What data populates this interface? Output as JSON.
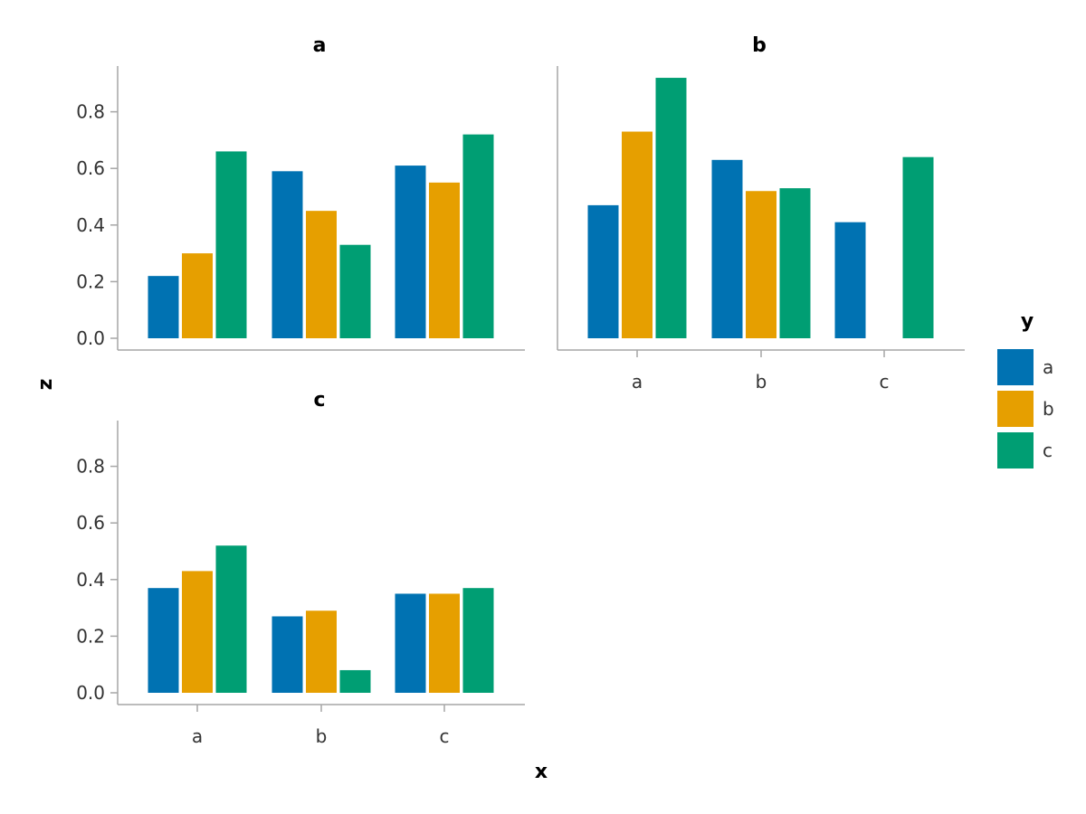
{
  "chart_data": {
    "type": "bar",
    "xlabel": "x",
    "ylabel": "z",
    "ylim": [
      0,
      0.96
    ],
    "yticks": [
      "0.0",
      "0.2",
      "0.4",
      "0.6",
      "0.8"
    ],
    "ytick_values": [
      0.0,
      0.2,
      0.4,
      0.6,
      0.8
    ],
    "categories": [
      "a",
      "b",
      "c"
    ],
    "legend": {
      "title": "y",
      "placement": "right",
      "entries": [
        {
          "label": "a",
          "color": "#0072b2"
        },
        {
          "label": "b",
          "color": "#e69f00"
        },
        {
          "label": "c",
          "color": "#009e73"
        }
      ]
    },
    "facets": [
      {
        "title": "a",
        "series": [
          {
            "group": "a",
            "values": [
              0.22,
              0.59,
              0.61
            ]
          },
          {
            "group": "b",
            "values": [
              0.3,
              0.45,
              0.55
            ]
          },
          {
            "group": "c",
            "values": [
              0.66,
              0.33,
              0.72
            ]
          }
        ]
      },
      {
        "title": "b",
        "series": [
          {
            "group": "a",
            "values": [
              0.47,
              0.63,
              0.41
            ]
          },
          {
            "group": "b",
            "values": [
              0.73,
              0.52,
              0.0
            ]
          },
          {
            "group": "c",
            "values": [
              0.92,
              0.53,
              0.64
            ]
          }
        ]
      },
      {
        "title": "c",
        "series": [
          {
            "group": "a",
            "values": [
              0.37,
              0.27,
              0.35
            ]
          },
          {
            "group": "b",
            "values": [
              0.43,
              0.29,
              0.35
            ]
          },
          {
            "group": "c",
            "values": [
              0.52,
              0.08,
              0.37
            ]
          }
        ]
      }
    ]
  }
}
